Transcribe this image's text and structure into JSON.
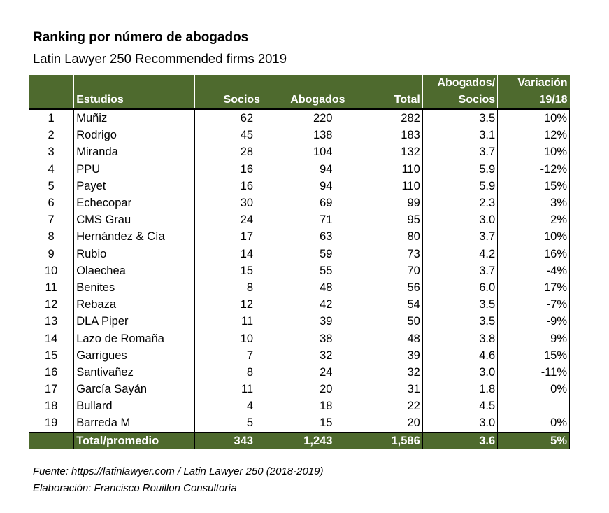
{
  "title": "Ranking por número de abogados",
  "subtitle": "Latin Lawyer 250 Recommended firms 2019",
  "header": {
    "estudios": "Estudios",
    "socios": "Socios",
    "abogados": "Abogados",
    "total": "Total",
    "ratio_line1": "Abogados/",
    "ratio_line2": "Socios",
    "var_line1": "Variación",
    "var_line2": "19/18"
  },
  "rows": [
    {
      "rank": "1",
      "name": "Muñiz",
      "socios": "62",
      "abogados": "220",
      "total": "282",
      "ratio": "3.5",
      "var": "10%"
    },
    {
      "rank": "2",
      "name": "Rodrigo",
      "socios": "45",
      "abogados": "138",
      "total": "183",
      "ratio": "3.1",
      "var": "12%"
    },
    {
      "rank": "3",
      "name": "Miranda",
      "socios": "28",
      "abogados": "104",
      "total": "132",
      "ratio": "3.7",
      "var": "10%"
    },
    {
      "rank": "4",
      "name": "PPU",
      "socios": "16",
      "abogados": "94",
      "total": "110",
      "ratio": "5.9",
      "var": "-12%"
    },
    {
      "rank": "5",
      "name": "Payet",
      "socios": "16",
      "abogados": "94",
      "total": "110",
      "ratio": "5.9",
      "var": "15%"
    },
    {
      "rank": "6",
      "name": "Echecopar",
      "socios": "30",
      "abogados": "69",
      "total": "99",
      "ratio": "2.3",
      "var": "3%"
    },
    {
      "rank": "7",
      "name": "CMS Grau",
      "socios": "24",
      "abogados": "71",
      "total": "95",
      "ratio": "3.0",
      "var": "2%"
    },
    {
      "rank": "8",
      "name": "Hernández & Cía",
      "socios": "17",
      "abogados": "63",
      "total": "80",
      "ratio": "3.7",
      "var": "10%"
    },
    {
      "rank": "9",
      "name": "Rubio",
      "socios": "14",
      "abogados": "59",
      "total": "73",
      "ratio": "4.2",
      "var": "16%"
    },
    {
      "rank": "10",
      "name": "Olaechea",
      "socios": "15",
      "abogados": "55",
      "total": "70",
      "ratio": "3.7",
      "var": "-4%"
    },
    {
      "rank": "11",
      "name": "Benites",
      "socios": "8",
      "abogados": "48",
      "total": "56",
      "ratio": "6.0",
      "var": "17%"
    },
    {
      "rank": "12",
      "name": "Rebaza",
      "socios": "12",
      "abogados": "42",
      "total": "54",
      "ratio": "3.5",
      "var": "-7%"
    },
    {
      "rank": "13",
      "name": "DLA Piper",
      "socios": "11",
      "abogados": "39",
      "total": "50",
      "ratio": "3.5",
      "var": "-9%"
    },
    {
      "rank": "14",
      "name": "Lazo de Romaña",
      "socios": "10",
      "abogados": "38",
      "total": "48",
      "ratio": "3.8",
      "var": "9%"
    },
    {
      "rank": "15",
      "name": "Garrigues",
      "socios": "7",
      "abogados": "32",
      "total": "39",
      "ratio": "4.6",
      "var": "15%"
    },
    {
      "rank": "16",
      "name": "Santivañez",
      "socios": "8",
      "abogados": "24",
      "total": "32",
      "ratio": "3.0",
      "var": "-11%"
    },
    {
      "rank": "17",
      "name": "García Sayán",
      "socios": "11",
      "abogados": "20",
      "total": "31",
      "ratio": "1.8",
      "var": "0%"
    },
    {
      "rank": "18",
      "name": "Bullard",
      "socios": "4",
      "abogados": "18",
      "total": "22",
      "ratio": "4.5",
      "var": ""
    },
    {
      "rank": "19",
      "name": "Barreda M",
      "socios": "5",
      "abogados": "15",
      "total": "20",
      "ratio": "3.0",
      "var": "0%"
    }
  ],
  "totals": {
    "label": "Total/promedio",
    "socios": "343",
    "abogados": "1,243",
    "total": "1,586",
    "ratio": "3.6",
    "var": "5%"
  },
  "source_line1": "Fuente: https://latinlawyer.com / Latin Lawyer 250 (2018-2019)",
  "source_line2": "Elaboración: Francisco Rouillon Consultoría",
  "colors": {
    "header_bg": "#4e6a2e",
    "header_text": "#ffffff"
  }
}
